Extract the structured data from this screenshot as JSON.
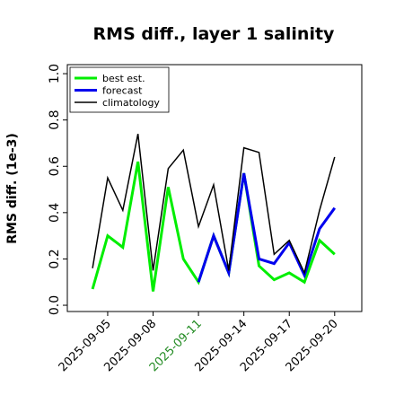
{
  "chart_data": {
    "type": "line",
    "title": "RMS diff., layer 1 salinity",
    "y_label": "RMS diff. (1e-3)",
    "x": [
      "2025-09-04",
      "2025-09-05",
      "2025-09-06",
      "2025-09-07",
      "2025-09-08",
      "2025-09-09",
      "2025-09-10",
      "2025-09-11",
      "2025-09-12",
      "2025-09-13",
      "2025-09-14",
      "2025-09-15",
      "2025-09-16",
      "2025-09-17",
      "2025-09-18",
      "2025-09-19",
      "2025-09-20"
    ],
    "series": [
      {
        "name": "best est.",
        "color": "#00ee00",
        "width": 3,
        "values": [
          0.07,
          0.3,
          0.25,
          0.62,
          0.06,
          0.51,
          0.2,
          0.1,
          0.3,
          0.14,
          0.57,
          0.17,
          0.11,
          0.14,
          0.1,
          0.28,
          0.22
        ]
      },
      {
        "name": "forecast",
        "color": "#0000ee",
        "width": 3,
        "values": [
          null,
          null,
          null,
          null,
          null,
          null,
          null,
          0.1,
          0.3,
          0.14,
          0.57,
          0.2,
          0.18,
          0.27,
          0.13,
          0.33,
          0.42
        ]
      },
      {
        "name": "climatology",
        "color": "#000000",
        "width": 1.5,
        "values": [
          0.16,
          0.55,
          0.41,
          0.74,
          0.15,
          0.59,
          0.67,
          0.34,
          0.52,
          0.15,
          0.68,
          0.66,
          0.22,
          0.28,
          0.14,
          0.41,
          0.64
        ]
      }
    ],
    "xlim": [
      "2025-09-02T08:00",
      "2025-09-21T19:00"
    ],
    "xticks": [
      "2025-09-05",
      "2025-09-08",
      "2025-09-11",
      "2025-09-14",
      "2025-09-17",
      "2025-09-20"
    ],
    "xtick_colors": [
      "#000000",
      "#000000",
      "#228b22",
      "#000000",
      "#000000",
      "#000000"
    ],
    "ylim": [
      -0.027,
      1.039
    ],
    "yticks": [
      {
        "value": 0,
        "label": "0.0"
      },
      {
        "value": 0.2,
        "label": "0.2"
      },
      {
        "value": 0.4,
        "label": "0.4"
      },
      {
        "value": 0.6,
        "label": "0.6"
      },
      {
        "value": 0.8,
        "label": "0.8"
      },
      {
        "value": 1,
        "label": "1.0"
      }
    ],
    "legend": "upper left"
  }
}
